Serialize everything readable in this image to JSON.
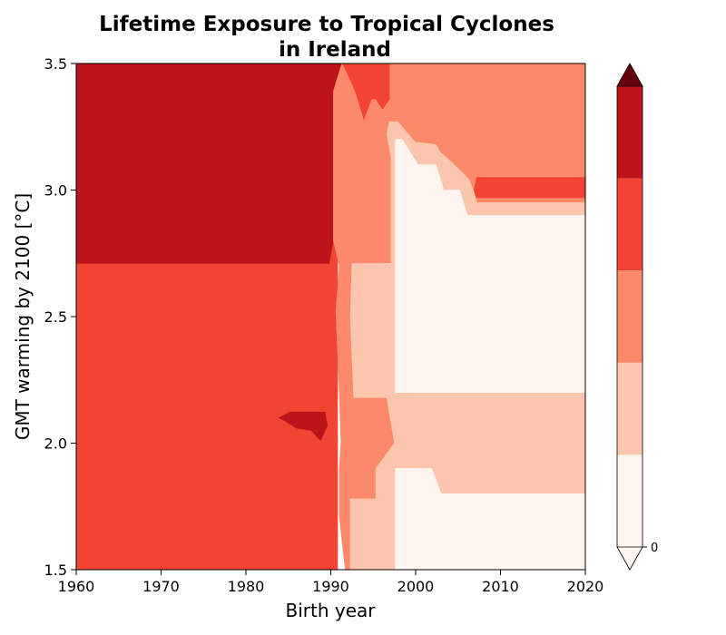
{
  "chart_data": {
    "type": "heatmap",
    "subtype": "filled-contour",
    "title_line1": "Lifetime Exposure to Tropical Cyclones",
    "title_line2": "in Ireland",
    "xlabel": "Birth year",
    "ylabel": "GMT warming by 2100 [°C]",
    "xlim": [
      1960,
      2020
    ],
    "ylim": [
      1.5,
      3.5
    ],
    "xticks": [
      1960,
      1970,
      1980,
      1990,
      2000,
      2010,
      2020
    ],
    "yticks": [
      1.5,
      2.0,
      2.5,
      3.0,
      3.5
    ],
    "ytick_labels": [
      "1.5",
      "2.0",
      "2.5",
      "3.0",
      "3.5"
    ],
    "colorbar": {
      "colormap": "Reds",
      "extend": "max",
      "tick_labels": [
        "0"
      ],
      "level_colors": [
        "#fff5f0",
        "#fcc5ae",
        "#fc8a6a",
        "#f14432",
        "#bc141a"
      ],
      "over_color": "#67000d"
    },
    "regions": [
      {
        "level": 3,
        "points": [
          [
            1960,
            3.5
          ],
          [
            1990.8,
            3.5
          ],
          [
            1990.8,
            1.5
          ],
          [
            1960,
            1.5
          ]
        ]
      },
      {
        "level": 4,
        "points": [
          [
            1960,
            3.5
          ],
          [
            1991.3,
            3.5
          ],
          [
            1990.3,
            3.39
          ],
          [
            1990.3,
            2.8
          ],
          [
            1989.8,
            2.71
          ],
          [
            1960,
            2.71
          ]
        ]
      },
      {
        "level": 4,
        "points": [
          [
            1983.9,
            2.1
          ],
          [
            1985.2,
            2.123
          ],
          [
            1989.3,
            2.123
          ],
          [
            1989.6,
            2.07
          ],
          [
            1988.8,
            2.01
          ],
          [
            1987.7,
            2.05
          ],
          [
            1985.9,
            2.06
          ],
          [
            1984.5,
            2.09
          ]
        ]
      },
      {
        "level": 2,
        "points": [
          [
            1991.3,
            3.5
          ],
          [
            2020,
            3.5
          ],
          [
            2020,
            1.5
          ],
          [
            1991.7,
            1.5
          ],
          [
            1991.0,
            1.71
          ],
          [
            1991.0,
            1.9
          ],
          [
            1991.2,
            2.0
          ],
          [
            1991.0,
            2.2
          ],
          [
            1990.6,
            2.52
          ],
          [
            1991.0,
            2.7
          ],
          [
            1990.3,
            2.8
          ],
          [
            1990.3,
            3.39
          ]
        ]
      },
      {
        "level": 3,
        "points": [
          [
            1991.4,
            3.5
          ],
          [
            1996.9,
            3.5
          ],
          [
            1996.9,
            3.36
          ],
          [
            1996.1,
            3.32
          ],
          [
            1995.3,
            3.36
          ],
          [
            1994.8,
            3.36
          ],
          [
            1993.9,
            3.28
          ],
          [
            1992.9,
            3.39
          ],
          [
            1992.1,
            3.45
          ]
        ]
      },
      {
        "level": 3,
        "points": [
          [
            2007.2,
            3.05
          ],
          [
            2020,
            3.05
          ],
          [
            2020,
            2.97
          ],
          [
            2007.2,
            2.97
          ],
          [
            2006.8,
            2.99
          ]
        ]
      },
      {
        "level": 1,
        "points": [
          [
            1996.9,
            3.27
          ],
          [
            1997.9,
            3.27
          ],
          [
            1999.9,
            3.19
          ],
          [
            2002.4,
            3.18
          ],
          [
            2002.9,
            3.15
          ],
          [
            2003.9,
            3.12
          ],
          [
            2005.5,
            3.07
          ],
          [
            2006.3,
            3.04
          ],
          [
            2006.9,
            2.99
          ],
          [
            2007.2,
            2.95
          ],
          [
            2020,
            2.95
          ],
          [
            2020,
            1.5
          ],
          [
            1992.3,
            1.5
          ],
          [
            1992.3,
            1.78
          ],
          [
            1995.3,
            1.78
          ],
          [
            1995.3,
            1.9
          ],
          [
            1997.5,
            2.0
          ],
          [
            1996.6,
            2.18
          ],
          [
            1992.7,
            2.18
          ],
          [
            1992.3,
            2.5
          ],
          [
            1992.5,
            2.71
          ],
          [
            1997.1,
            2.71
          ],
          [
            1997.1,
            3.13
          ],
          [
            1996.6,
            3.22
          ]
        ]
      },
      {
        "level": 0,
        "points": [
          [
            1997.6,
            3.2
          ],
          [
            1998.4,
            3.2
          ],
          [
            2000.3,
            3.1
          ],
          [
            2002.4,
            3.1
          ],
          [
            2003.3,
            3.0
          ],
          [
            2005.2,
            3.0
          ],
          [
            2006.1,
            2.9
          ],
          [
            2020,
            2.9
          ],
          [
            2020,
            2.2
          ],
          [
            1997.6,
            2.2
          ]
        ]
      },
      {
        "level": 0,
        "points": [
          [
            1997.6,
            1.9
          ],
          [
            2001.9,
            1.9
          ],
          [
            2003.0,
            1.8
          ],
          [
            2020,
            1.8
          ],
          [
            2020,
            1.5
          ],
          [
            1997.6,
            1.5
          ]
        ]
      }
    ]
  }
}
